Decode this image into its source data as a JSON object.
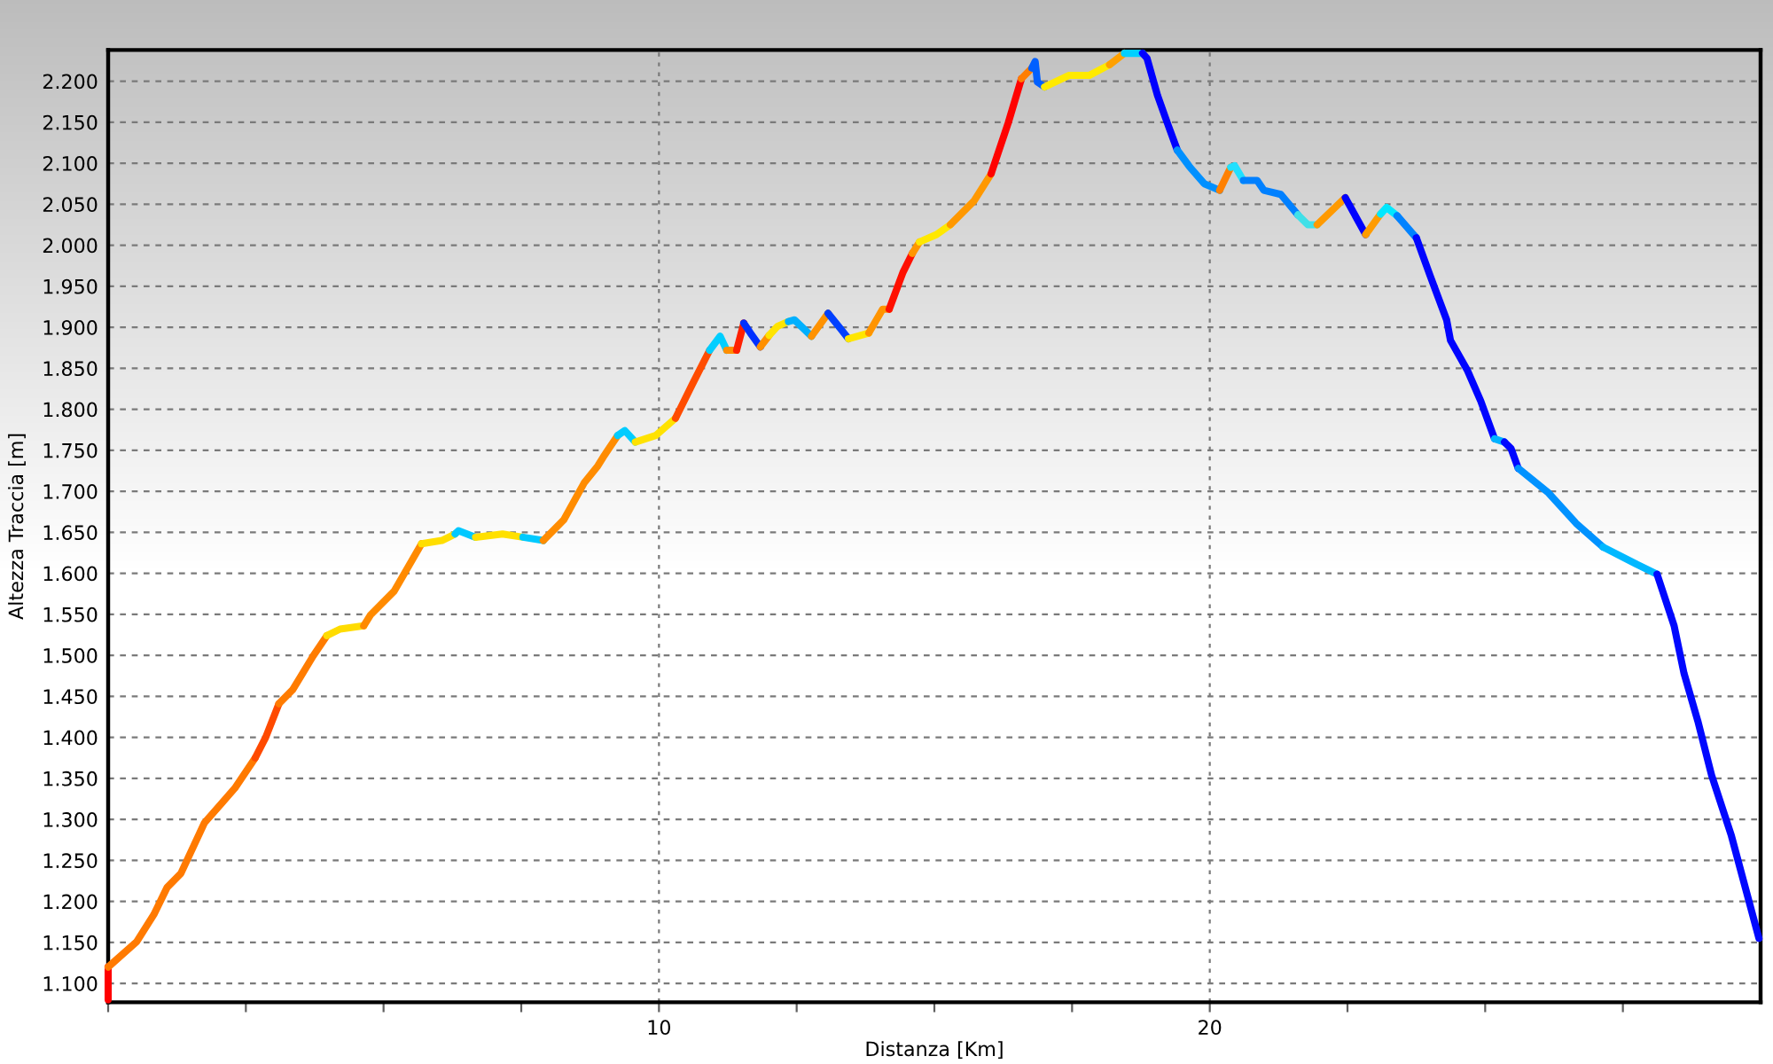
{
  "chart_data": {
    "type": "line",
    "xlabel": "Distanza [Km]",
    "ylabel": "Altezza Traccia [m]",
    "xlim": [
      0,
      30
    ],
    "ylim": [
      1077,
      2238
    ],
    "xticks": [
      {
        "value": 0,
        "label": null
      },
      {
        "value": 2.5,
        "label": null
      },
      {
        "value": 5,
        "label": null
      },
      {
        "value": 7.5,
        "label": null
      },
      10,
      {
        "value": 12.5,
        "label": null
      },
      {
        "value": 15,
        "label": null
      },
      {
        "value": 17.5,
        "label": null
      },
      20,
      {
        "value": 22.5,
        "label": null
      },
      {
        "value": 25,
        "label": null
      },
      {
        "value": 27.5,
        "label": null
      }
    ],
    "yticks": [
      {
        "value": 1100,
        "label": "1.100"
      },
      {
        "value": 1150,
        "label": "1.150"
      },
      {
        "value": 1200,
        "label": "1.200"
      },
      {
        "value": 1250,
        "label": "1.250"
      },
      {
        "value": 1300,
        "label": "1.300"
      },
      {
        "value": 1350,
        "label": "1.350"
      },
      {
        "value": 1400,
        "label": "1.400"
      },
      {
        "value": 1450,
        "label": "1.450"
      },
      {
        "value": 1500,
        "label": "1.500"
      },
      {
        "value": 1550,
        "label": "1.550"
      },
      {
        "value": 1600,
        "label": "1.600"
      },
      {
        "value": 1650,
        "label": "1.650"
      },
      {
        "value": 1700,
        "label": "1.700"
      },
      {
        "value": 1750,
        "label": "1.750"
      },
      {
        "value": 1800,
        "label": "1.800"
      },
      {
        "value": 1850,
        "label": "1.850"
      },
      {
        "value": 1900,
        "label": "1.900"
      },
      {
        "value": 1950,
        "label": "1.950"
      },
      {
        "value": 2000,
        "label": "2.000"
      },
      {
        "value": 2050,
        "label": "2.050"
      },
      {
        "value": 2100,
        "label": "2.100"
      },
      {
        "value": 2150,
        "label": "2.150"
      },
      {
        "value": 2200,
        "label": "2.200"
      }
    ],
    "grid": true,
    "series": [
      {
        "color": "#ff0000",
        "x": [
          0,
          0
        ],
        "values": [
          1080,
          1120
        ]
      },
      {
        "color": "#ff7a00",
        "x": [
          0,
          0.52,
          0.83,
          1.07,
          1.32,
          1.75,
          2.3,
          2.67
        ],
        "values": [
          1120,
          1151,
          1184,
          1217,
          1234,
          1296,
          1338,
          1375
        ]
      },
      {
        "color": "#ff4a00",
        "x": [
          2.67,
          2.86,
          3.1
        ],
        "values": [
          1375,
          1400,
          1441
        ]
      },
      {
        "color": "#ff7c00",
        "x": [
          3.1,
          3.35,
          3.72,
          3.97
        ],
        "values": [
          1441,
          1458,
          1499,
          1524
        ]
      },
      {
        "color": "#ffdc00",
        "x": [
          3.97,
          4.21,
          4.64
        ],
        "values": [
          1524,
          1532,
          1536
        ]
      },
      {
        "color": "#ff8a00",
        "x": [
          4.64,
          4.76,
          5.19,
          5.69
        ],
        "values": [
          1536,
          1549,
          1578,
          1636
        ]
      },
      {
        "color": "#ffde00",
        "x": [
          5.69,
          6.06,
          6.3
        ],
        "values": [
          1636,
          1640,
          1648
        ]
      },
      {
        "color": "#00c8ff",
        "x": [
          6.3,
          6.36,
          6.67
        ],
        "values": [
          1648,
          1652,
          1644
        ]
      },
      {
        "color": "#ffe000",
        "x": [
          6.67,
          7.16,
          7.53
        ],
        "values": [
          1644,
          1648,
          1644
        ]
      },
      {
        "color": "#00caff",
        "x": [
          7.53,
          7.9
        ],
        "values": [
          1644,
          1640
        ]
      },
      {
        "color": "#ff8c00",
        "x": [
          7.9,
          8.27,
          8.64,
          8.89,
          9.01,
          9.25
        ],
        "values": [
          1640,
          1665,
          1710,
          1731,
          1744,
          1768
        ]
      },
      {
        "color": "#00ccff",
        "x": [
          9.25,
          9.38,
          9.57
        ],
        "values": [
          1768,
          1774,
          1760
        ]
      },
      {
        "color": "#ffe200",
        "x": [
          9.57,
          9.94,
          10.3
        ],
        "values": [
          1760,
          1768,
          1789
        ]
      },
      {
        "color": "#ff4c00",
        "x": [
          10.3,
          10.61,
          10.92
        ],
        "values": [
          1789,
          1831,
          1872
        ]
      },
      {
        "color": "#00ceff",
        "x": [
          10.92,
          11.11,
          11.23
        ],
        "values": [
          1872,
          1889,
          1872
        ]
      },
      {
        "color": "#ff8e00",
        "x": [
          11.23,
          11.41
        ],
        "values": [
          1872,
          1872
        ]
      },
      {
        "color": "#ff2000",
        "x": [
          11.41,
          11.54
        ],
        "values": [
          1872,
          1905
        ]
      },
      {
        "color": "#0030ff",
        "x": [
          11.54,
          11.66,
          11.84
        ],
        "values": [
          1905,
          1893,
          1876
        ]
      },
      {
        "color": "#ff9000",
        "x": [
          11.84,
          12.0
        ],
        "values": [
          1876,
          1890
        ]
      },
      {
        "color": "#ffe400",
        "x": [
          12.0,
          12.15,
          12.35
        ],
        "values": [
          1890,
          1901,
          1907
        ]
      },
      {
        "color": "#00b0ff",
        "x": [
          12.35,
          12.46,
          12.77
        ],
        "values": [
          1907,
          1909,
          1889
        ]
      },
      {
        "color": "#ff9200",
        "x": [
          12.77,
          13.07
        ],
        "values": [
          1889,
          1917
        ]
      },
      {
        "color": "#0040ff",
        "x": [
          13.07,
          13.3,
          13.44
        ],
        "values": [
          1917,
          1898,
          1886
        ]
      },
      {
        "color": "#ffe600",
        "x": [
          13.44,
          13.81
        ],
        "values": [
          1886,
          1893
        ]
      },
      {
        "color": "#ff9400",
        "x": [
          13.81,
          14.06,
          14.18
        ],
        "values": [
          1893,
          1922,
          1922
        ]
      },
      {
        "color": "#ff1000",
        "x": [
          14.18,
          14.43,
          14.6
        ],
        "values": [
          1922,
          1967,
          1990
        ]
      },
      {
        "color": "#ff9600",
        "x": [
          14.6,
          14.73
        ],
        "values": [
          1990,
          2004
        ]
      },
      {
        "color": "#ffe800",
        "x": [
          14.73,
          15.04,
          15.29
        ],
        "values": [
          2004,
          2013,
          2025
        ]
      },
      {
        "color": "#ff9800",
        "x": [
          15.29,
          15.72,
          16.03
        ],
        "values": [
          2025,
          2054,
          2087
        ]
      },
      {
        "color": "#ff0200",
        "x": [
          16.03,
          16.34,
          16.58
        ],
        "values": [
          2087,
          2149,
          2203
        ]
      },
      {
        "color": "#ff7e00",
        "x": [
          16.58,
          16.77
        ],
        "values": [
          2203,
          2216
        ]
      },
      {
        "color": "#0060ff",
        "x": [
          16.77,
          16.83,
          16.87,
          17.0
        ],
        "values": [
          2216,
          2224,
          2199,
          2193
        ]
      },
      {
        "color": "#ffea00",
        "x": [
          17.0,
          17.44,
          17.81,
          18.18
        ],
        "values": [
          2193,
          2207,
          2207,
          2220
        ]
      },
      {
        "color": "#ffa000",
        "x": [
          18.18,
          18.45
        ],
        "values": [
          2220,
          2234
        ]
      },
      {
        "color": "#00d0ff",
        "x": [
          18.45,
          18.78
        ],
        "values": [
          2234,
          2234
        ]
      },
      {
        "color": "#0000ff",
        "x": [
          18.78,
          18.86,
          19.05,
          19.23,
          19.41
        ],
        "values": [
          2234,
          2228,
          2183,
          2149,
          2116
        ]
      },
      {
        "color": "#0090ff",
        "x": [
          19.41,
          19.63,
          19.9,
          20.18
        ],
        "values": [
          2116,
          2096,
          2075,
          2067
        ]
      },
      {
        "color": "#ff8000",
        "x": [
          20.18,
          20.38
        ],
        "values": [
          2067,
          2095
        ]
      },
      {
        "color": "#20e0ff",
        "x": [
          20.38,
          20.45,
          20.61
        ],
        "values": [
          2095,
          2097,
          2079
        ]
      },
      {
        "color": "#0080ff",
        "x": [
          20.61,
          20.86,
          20.98,
          21.29,
          21.6
        ],
        "values": [
          2079,
          2079,
          2067,
          2062,
          2037
        ]
      },
      {
        "color": "#40e0e8",
        "x": [
          21.6,
          21.78,
          21.95
        ],
        "values": [
          2037,
          2025,
          2025
        ]
      },
      {
        "color": "#ff9a00",
        "x": [
          21.95,
          22.46
        ],
        "values": [
          2025,
          2058
        ]
      },
      {
        "color": "#0002ff",
        "x": [
          22.46,
          22.83
        ],
        "values": [
          2058,
          2013
        ]
      },
      {
        "color": "#ff9c00",
        "x": [
          22.83,
          23.1
        ],
        "values": [
          2013,
          2038
        ]
      },
      {
        "color": "#00e8ff",
        "x": [
          23.1,
          23.21,
          23.4
        ],
        "values": [
          2038,
          2046,
          2036
        ]
      },
      {
        "color": "#0082ff",
        "x": [
          23.4,
          23.75
        ],
        "values": [
          2036,
          2009
        ]
      },
      {
        "color": "#0004ff",
        "x": [
          23.75,
          24.0,
          24.3,
          24.37,
          24.68,
          24.92,
          25.17
        ],
        "values": [
          2009,
          1963,
          1909,
          1884,
          1847,
          1810,
          1764
        ]
      },
      {
        "color": "#00b2ff",
        "x": [
          25.17,
          25.35
        ],
        "values": [
          1764,
          1760
        ]
      },
      {
        "color": "#0006ff",
        "x": [
          25.35,
          25.47,
          25.6
        ],
        "values": [
          1760,
          1752,
          1728
        ]
      },
      {
        "color": "#0092ff",
        "x": [
          25.6,
          26.15,
          26.65,
          27.14
        ],
        "values": [
          1728,
          1698,
          1661,
          1632
        ]
      },
      {
        "color": "#00b8ff",
        "x": [
          27.14,
          27.75,
          28.12
        ],
        "values": [
          1632,
          1611,
          1599
        ]
      },
      {
        "color": "#0008ff",
        "x": [
          28.12,
          28.43,
          28.61,
          28.86,
          29.11,
          29.47,
          29.97
        ],
        "values": [
          1599,
          1536,
          1478,
          1420,
          1354,
          1280,
          1155
        ]
      }
    ]
  }
}
